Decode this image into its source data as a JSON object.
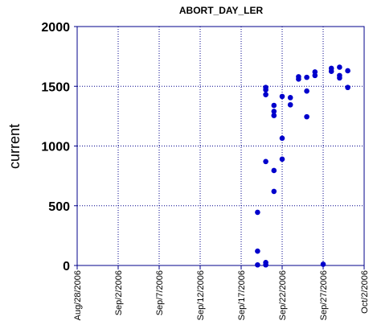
{
  "chart_data": {
    "type": "scatter",
    "title": "ABORT_DAY_LER",
    "xlabel": "",
    "ylabel": "current",
    "x_axis_type": "date",
    "xlim": [
      "2006-08-28",
      "2006-10-02"
    ],
    "ylim": [
      0,
      2000
    ],
    "x_ticks": [
      {
        "date": "2006-08-28",
        "label": "Aug/28/2006"
      },
      {
        "date": "2006-09-02",
        "label": "Sep/2/2006"
      },
      {
        "date": "2006-09-07",
        "label": "Sep/7/2006"
      },
      {
        "date": "2006-09-12",
        "label": "Sep/12/2006"
      },
      {
        "date": "2006-09-17",
        "label": "Sep/17/2006"
      },
      {
        "date": "2006-09-22",
        "label": "Sep/22/2006"
      },
      {
        "date": "2006-09-27",
        "label": "Sep/27/2006"
      },
      {
        "date": "2006-10-02",
        "label": "Oct/2/2006"
      }
    ],
    "y_ticks": [
      0,
      500,
      1000,
      1500,
      2000
    ],
    "y_tick_labels": [
      "0",
      "500",
      "1000",
      "1500",
      "2000"
    ],
    "grid": true,
    "colors": {
      "points": "#0000cc",
      "axes": "#00008b",
      "grid": "#00008b"
    },
    "points": [
      {
        "x": "2006-09-19T00:00",
        "y": 445
      },
      {
        "x": "2006-09-19T00:00",
        "y": 120
      },
      {
        "x": "2006-09-19T00:00",
        "y": 5
      },
      {
        "x": "2006-09-20T00:00",
        "y": 1490
      },
      {
        "x": "2006-09-20T00:00",
        "y": 1470
      },
      {
        "x": "2006-09-20T00:00",
        "y": 1430
      },
      {
        "x": "2006-09-20T00:00",
        "y": 870
      },
      {
        "x": "2006-09-20T00:00",
        "y": 25
      },
      {
        "x": "2006-09-20T00:00",
        "y": 5
      },
      {
        "x": "2006-09-21T00:00",
        "y": 1340
      },
      {
        "x": "2006-09-21T00:00",
        "y": 1290
      },
      {
        "x": "2006-09-21T00:00",
        "y": 1255
      },
      {
        "x": "2006-09-21T00:00",
        "y": 795
      },
      {
        "x": "2006-09-21T00:00",
        "y": 620
      },
      {
        "x": "2006-09-22T00:00",
        "y": 1415
      },
      {
        "x": "2006-09-22T00:00",
        "y": 1065
      },
      {
        "x": "2006-09-22T00:00",
        "y": 890
      },
      {
        "x": "2006-09-23T00:00",
        "y": 1405
      },
      {
        "x": "2006-09-23T00:00",
        "y": 1345
      },
      {
        "x": "2006-09-24T00:00",
        "y": 1580
      },
      {
        "x": "2006-09-24T00:00",
        "y": 1560
      },
      {
        "x": "2006-09-25T00:00",
        "y": 1575
      },
      {
        "x": "2006-09-25T00:00",
        "y": 1460
      },
      {
        "x": "2006-09-25T00:00",
        "y": 1245
      },
      {
        "x": "2006-09-26T00:00",
        "y": 1620
      },
      {
        "x": "2006-09-26T00:00",
        "y": 1590
      },
      {
        "x": "2006-09-27T00:00",
        "y": 10
      },
      {
        "x": "2006-09-28T00:00",
        "y": 1650
      },
      {
        "x": "2006-09-28T00:00",
        "y": 1625
      },
      {
        "x": "2006-09-29T00:00",
        "y": 1660
      },
      {
        "x": "2006-09-29T00:00",
        "y": 1590
      },
      {
        "x": "2006-09-29T00:00",
        "y": 1570
      },
      {
        "x": "2006-09-30T00:00",
        "y": 1630
      },
      {
        "x": "2006-09-30T00:00",
        "y": 1490
      }
    ]
  }
}
